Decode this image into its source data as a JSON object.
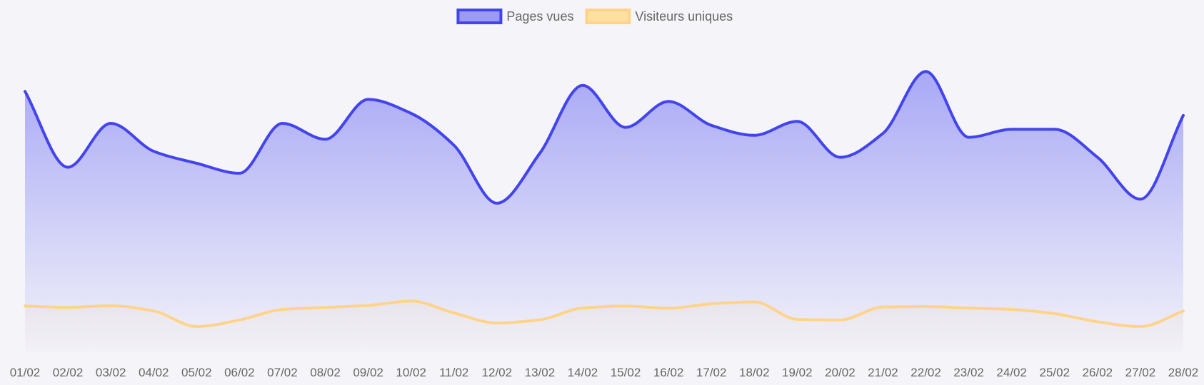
{
  "chart_data": {
    "type": "area",
    "categories": [
      "01/02",
      "02/02",
      "03/02",
      "04/02",
      "05/02",
      "06/02",
      "07/02",
      "08/02",
      "09/02",
      "10/02",
      "11/02",
      "12/02",
      "13/02",
      "14/02",
      "15/02",
      "16/02",
      "17/02",
      "18/02",
      "19/02",
      "20/02",
      "21/02",
      "22/02",
      "23/02",
      "24/02",
      "25/02",
      "26/02",
      "27/02",
      "28/02"
    ],
    "series": [
      {
        "name": "Pages vues",
        "color": "#4444ee",
        "fill_color": "#9b9bf5",
        "values": [
          1310,
          930,
          1150,
          1010,
          950,
          900,
          1150,
          1070,
          1270,
          1200,
          1040,
          750,
          1000,
          1340,
          1130,
          1260,
          1140,
          1090,
          1160,
          980,
          1100,
          1410,
          1080,
          1120,
          1120,
          980,
          770,
          1190
        ]
      },
      {
        "name": "Visiteurs uniques",
        "color": "#ffd48a",
        "fill_color": "#ffe0a3",
        "values": [
          235,
          228,
          236,
          210,
          132,
          165,
          218,
          228,
          238,
          260,
          200,
          150,
          166,
          225,
          235,
          224,
          246,
          256,
          168,
          165,
          230,
          232,
          225,
          218,
          197,
          156,
          132,
          210
        ]
      }
    ],
    "ylim": [
      0,
      1500
    ],
    "grid": false,
    "legend": "top-center",
    "title": "",
    "xlabel": "",
    "ylabel": ""
  }
}
